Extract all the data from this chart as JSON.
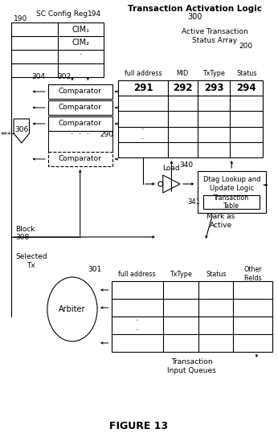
{
  "title": "FIGURE 13",
  "bg_color": "#ffffff",
  "line_color": "#000000",
  "text_color": "#000000",
  "main_title": "Transaction Activation Logic",
  "main_title_ref": "300",
  "sc_config_label": "SC Config Reg",
  "sc_config_ref": "190",
  "sc_config_ref2": "194",
  "cim1_label": "CIM₁",
  "cim2_label": "CIM₂",
  "atsa_label": "Active Transaction\nStatus Array",
  "atsa_ref": "200",
  "atsa_cols": [
    "full address",
    "MID",
    "TxType",
    "Status"
  ],
  "atsa_col_refs": [
    "291",
    "292",
    "293",
    "294"
  ],
  "atsa_row_ref": "290",
  "comparator_label": "Comparator",
  "comparator_ref_left": "304",
  "comparator_ref_top": "302",
  "comparator_shield_ref": "306",
  "block_label": "Block",
  "block_ref": "308",
  "load_label": "Load",
  "dtag_label": "Dtag Lookup and\nUpdate Logic",
  "dtag_ref": "340",
  "trans_table_label": "Transaction\nTable",
  "trans_table_ref": "341",
  "mark_active_label": "Mark as\nActive",
  "arbiter_label": "Arbiter",
  "arbiter_ref": "301",
  "tiq_label": "Transaction\nInput Queues",
  "tiq_cols": [
    "full address",
    "TxType",
    "Status",
    "Other\nFields"
  ],
  "selected_tx_label": "Selected\nTx"
}
